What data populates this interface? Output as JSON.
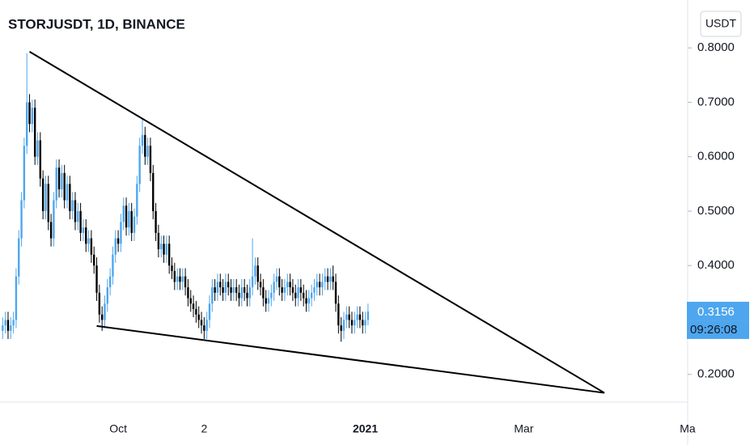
{
  "chart_data": {
    "type": "candlestick",
    "title": "STORJUSDT, 1D, BINANCE",
    "currency": "USDT",
    "x": [
      "2020-08-19",
      "2020-08-20",
      "2020-08-21",
      "2020-08-22",
      "2020-08-23",
      "2020-08-24",
      "2020-08-25",
      "2020-08-26",
      "2020-08-27",
      "2020-08-28",
      "2020-08-29",
      "2020-08-30",
      "2020-08-31",
      "2020-09-01",
      "2020-09-02",
      "2020-09-03",
      "2020-09-04",
      "2020-09-05",
      "2020-09-06",
      "2020-09-07",
      "2020-09-08",
      "2020-09-09",
      "2020-09-10",
      "2020-09-11",
      "2020-09-12",
      "2020-09-13",
      "2020-09-14",
      "2020-09-15",
      "2020-09-16",
      "2020-09-17",
      "2020-09-18",
      "2020-09-19",
      "2020-09-20",
      "2020-09-21",
      "2020-09-22",
      "2020-09-23",
      "2020-09-24",
      "2020-09-25",
      "2020-09-26",
      "2020-09-27",
      "2020-09-28",
      "2020-09-29",
      "2020-09-30",
      "2020-10-01",
      "2020-10-02",
      "2020-10-03",
      "2020-10-04",
      "2020-10-05",
      "2020-10-06",
      "2020-10-07",
      "2020-10-08",
      "2020-10-09",
      "2020-10-10",
      "2020-10-11",
      "2020-10-12",
      "2020-10-13",
      "2020-10-14",
      "2020-10-15",
      "2020-10-16",
      "2020-10-17",
      "2020-10-18",
      "2020-10-19",
      "2020-10-20",
      "2020-10-21",
      "2020-10-22",
      "2020-10-23",
      "2020-10-24",
      "2020-10-25",
      "2020-10-26",
      "2020-10-27",
      "2020-10-28",
      "2020-10-29",
      "2020-10-30",
      "2020-10-31",
      "2020-11-01",
      "2020-11-02",
      "2020-11-03",
      "2020-11-04",
      "2020-11-05",
      "2020-11-06",
      "2020-11-07",
      "2020-11-08",
      "2020-11-09",
      "2020-11-10",
      "2020-11-11",
      "2020-11-12",
      "2020-11-13",
      "2020-11-14",
      "2020-11-15",
      "2020-11-16",
      "2020-11-17",
      "2020-11-18",
      "2020-11-19",
      "2020-11-20",
      "2020-11-21",
      "2020-11-22",
      "2020-11-23",
      "2020-11-24",
      "2020-11-25",
      "2020-11-26",
      "2020-11-27",
      "2020-11-28",
      "2020-11-29",
      "2020-11-30",
      "2020-12-01",
      "2020-12-02",
      "2020-12-03",
      "2020-12-04",
      "2020-12-05",
      "2020-12-06",
      "2020-12-07",
      "2020-12-08",
      "2020-12-09",
      "2020-12-10",
      "2020-12-11",
      "2020-12-12",
      "2020-12-13",
      "2020-12-14",
      "2020-12-15",
      "2020-12-16",
      "2020-12-17",
      "2020-12-18",
      "2020-12-19",
      "2020-12-20",
      "2020-12-21",
      "2020-12-22",
      "2020-12-23",
      "2020-12-24",
      "2020-12-25",
      "2020-12-26",
      "2020-12-27",
      "2020-12-28",
      "2020-12-29",
      "2020-12-30",
      "2020-12-31",
      "2021-01-01",
      "2021-01-02"
    ],
    "open": [
      0.28,
      0.29,
      0.3,
      0.28,
      0.29,
      0.3,
      0.38,
      0.45,
      0.52,
      0.62,
      0.7,
      0.66,
      0.69,
      0.6,
      0.63,
      0.56,
      0.5,
      0.55,
      0.48,
      0.45,
      0.52,
      0.58,
      0.54,
      0.57,
      0.52,
      0.55,
      0.5,
      0.52,
      0.48,
      0.5,
      0.46,
      0.47,
      0.44,
      0.45,
      0.42,
      0.4,
      0.35,
      0.31,
      0.3,
      0.33,
      0.36,
      0.38,
      0.42,
      0.45,
      0.44,
      0.48,
      0.51,
      0.47,
      0.5,
      0.46,
      0.49,
      0.55,
      0.62,
      0.64,
      0.6,
      0.62,
      0.57,
      0.5,
      0.46,
      0.43,
      0.44,
      0.42,
      0.44,
      0.4,
      0.39,
      0.37,
      0.38,
      0.37,
      0.38,
      0.36,
      0.34,
      0.33,
      0.32,
      0.31,
      0.3,
      0.29,
      0.28,
      0.3,
      0.33,
      0.36,
      0.35,
      0.37,
      0.36,
      0.35,
      0.37,
      0.36,
      0.35,
      0.36,
      0.35,
      0.34,
      0.36,
      0.35,
      0.34,
      0.36,
      0.38,
      0.4,
      0.37,
      0.36,
      0.34,
      0.33,
      0.34,
      0.35,
      0.37,
      0.38,
      0.36,
      0.35,
      0.36,
      0.37,
      0.36,
      0.35,
      0.34,
      0.36,
      0.35,
      0.34,
      0.33,
      0.34,
      0.35,
      0.36,
      0.37,
      0.36,
      0.37,
      0.38,
      0.37,
      0.38,
      0.37,
      0.33,
      0.29,
      0.28,
      0.3,
      0.31,
      0.3,
      0.29,
      0.3,
      0.31,
      0.3,
      0.29,
      0.3
    ],
    "high": [
      0.305,
      0.315,
      0.315,
      0.305,
      0.315,
      0.395,
      0.465,
      0.535,
      0.635,
      0.79,
      0.715,
      0.705,
      0.705,
      0.645,
      0.645,
      0.575,
      0.565,
      0.565,
      0.495,
      0.535,
      0.595,
      0.595,
      0.585,
      0.585,
      0.565,
      0.565,
      0.535,
      0.535,
      0.515,
      0.515,
      0.485,
      0.485,
      0.465,
      0.465,
      0.435,
      0.415,
      0.365,
      0.325,
      0.345,
      0.375,
      0.395,
      0.435,
      0.465,
      0.465,
      0.495,
      0.525,
      0.525,
      0.515,
      0.515,
      0.505,
      0.565,
      0.635,
      0.67,
      0.655,
      0.635,
      0.635,
      0.585,
      0.515,
      0.475,
      0.455,
      0.455,
      0.455,
      0.455,
      0.415,
      0.405,
      0.395,
      0.395,
      0.395,
      0.395,
      0.375,
      0.355,
      0.345,
      0.335,
      0.325,
      0.315,
      0.305,
      0.315,
      0.345,
      0.375,
      0.375,
      0.385,
      0.385,
      0.375,
      0.385,
      0.385,
      0.375,
      0.375,
      0.375,
      0.365,
      0.375,
      0.375,
      0.365,
      0.375,
      0.45,
      0.415,
      0.415,
      0.385,
      0.375,
      0.355,
      0.355,
      0.365,
      0.385,
      0.395,
      0.395,
      0.375,
      0.375,
      0.385,
      0.385,
      0.375,
      0.365,
      0.375,
      0.375,
      0.365,
      0.355,
      0.355,
      0.365,
      0.375,
      0.385,
      0.385,
      0.385,
      0.395,
      0.395,
      0.395,
      0.4,
      0.385,
      0.345,
      0.305,
      0.315,
      0.325,
      0.325,
      0.315,
      0.315,
      0.325,
      0.325,
      0.315,
      0.315,
      0.33
    ],
    "low": [
      0.265,
      0.275,
      0.265,
      0.265,
      0.275,
      0.285,
      0.365,
      0.435,
      0.505,
      0.605,
      0.645,
      0.645,
      0.585,
      0.585,
      0.545,
      0.485,
      0.485,
      0.465,
      0.435,
      0.435,
      0.505,
      0.525,
      0.525,
      0.505,
      0.505,
      0.485,
      0.485,
      0.465,
      0.465,
      0.445,
      0.445,
      0.425,
      0.425,
      0.405,
      0.385,
      0.335,
      0.295,
      0.28,
      0.285,
      0.315,
      0.345,
      0.365,
      0.405,
      0.425,
      0.425,
      0.465,
      0.455,
      0.455,
      0.445,
      0.445,
      0.475,
      0.535,
      0.605,
      0.585,
      0.585,
      0.555,
      0.485,
      0.445,
      0.415,
      0.415,
      0.405,
      0.405,
      0.385,
      0.375,
      0.355,
      0.355,
      0.355,
      0.355,
      0.345,
      0.325,
      0.315,
      0.305,
      0.295,
      0.285,
      0.275,
      0.265,
      0.265,
      0.285,
      0.315,
      0.335,
      0.335,
      0.345,
      0.335,
      0.335,
      0.345,
      0.335,
      0.335,
      0.335,
      0.325,
      0.325,
      0.335,
      0.325,
      0.325,
      0.345,
      0.365,
      0.355,
      0.345,
      0.325,
      0.315,
      0.315,
      0.325,
      0.335,
      0.355,
      0.345,
      0.335,
      0.335,
      0.345,
      0.345,
      0.335,
      0.325,
      0.325,
      0.335,
      0.325,
      0.315,
      0.315,
      0.325,
      0.335,
      0.345,
      0.345,
      0.345,
      0.355,
      0.355,
      0.355,
      0.355,
      0.315,
      0.275,
      0.26,
      0.265,
      0.285,
      0.285,
      0.275,
      0.275,
      0.285,
      0.285,
      0.275,
      0.275,
      0.29
    ],
    "close": [
      0.29,
      0.3,
      0.28,
      0.29,
      0.3,
      0.38,
      0.45,
      0.52,
      0.62,
      0.7,
      0.66,
      0.69,
      0.6,
      0.63,
      0.56,
      0.5,
      0.55,
      0.48,
      0.45,
      0.52,
      0.58,
      0.54,
      0.57,
      0.52,
      0.55,
      0.5,
      0.52,
      0.48,
      0.5,
      0.46,
      0.47,
      0.44,
      0.45,
      0.42,
      0.4,
      0.35,
      0.31,
      0.3,
      0.33,
      0.36,
      0.38,
      0.42,
      0.45,
      0.44,
      0.48,
      0.51,
      0.47,
      0.5,
      0.46,
      0.49,
      0.55,
      0.62,
      0.64,
      0.6,
      0.62,
      0.57,
      0.5,
      0.46,
      0.43,
      0.44,
      0.42,
      0.44,
      0.4,
      0.39,
      0.37,
      0.38,
      0.37,
      0.38,
      0.36,
      0.34,
      0.33,
      0.32,
      0.31,
      0.3,
      0.29,
      0.28,
      0.3,
      0.33,
      0.36,
      0.35,
      0.37,
      0.36,
      0.35,
      0.37,
      0.36,
      0.35,
      0.36,
      0.35,
      0.34,
      0.36,
      0.35,
      0.34,
      0.36,
      0.38,
      0.4,
      0.37,
      0.36,
      0.34,
      0.33,
      0.34,
      0.35,
      0.37,
      0.38,
      0.36,
      0.35,
      0.36,
      0.37,
      0.36,
      0.35,
      0.34,
      0.36,
      0.35,
      0.34,
      0.33,
      0.34,
      0.35,
      0.36,
      0.37,
      0.36,
      0.37,
      0.38,
      0.37,
      0.38,
      0.37,
      0.33,
      0.29,
      0.28,
      0.3,
      0.31,
      0.3,
      0.29,
      0.3,
      0.31,
      0.3,
      0.29,
      0.3,
      0.3156
    ],
    "up_color": "#4ea6ee",
    "down_color": "#000000",
    "xlim": [
      "2020-08-18",
      "2021-05-01"
    ],
    "xticks": [
      {
        "value": "2020-10-01",
        "label": "Oct"
      },
      {
        "value": "2020-11-02",
        "label": "2"
      },
      {
        "value": "2021-01-01",
        "label": "2021"
      },
      {
        "value": "2021-03-01",
        "label": "Mar"
      },
      {
        "value": "2021-05-01",
        "label": "Ma"
      }
    ],
    "ylim": [
      0.149,
      0.888
    ],
    "yticks": [
      {
        "value": 0.2,
        "label": "0.2000"
      },
      {
        "value": 0.4,
        "label": "0.4000"
      },
      {
        "value": 0.5,
        "label": "0.5000"
      },
      {
        "value": 0.6,
        "label": "0.6000"
      },
      {
        "value": 0.7,
        "label": "0.7000"
      },
      {
        "value": 0.8,
        "label": "0.8000"
      }
    ],
    "last_price": {
      "value": 0.3156,
      "label": "0.3156"
    },
    "countdown": "09:26:08",
    "trendlines": [
      {
        "start": {
          "x": "2020-08-29",
          "y": 0.793
        },
        "end": {
          "x": "2021-03-31",
          "y": 0.166
        }
      },
      {
        "start": {
          "x": "2020-09-23",
          "y": 0.289
        },
        "end": {
          "x": "2021-03-31",
          "y": 0.166
        }
      }
    ]
  }
}
